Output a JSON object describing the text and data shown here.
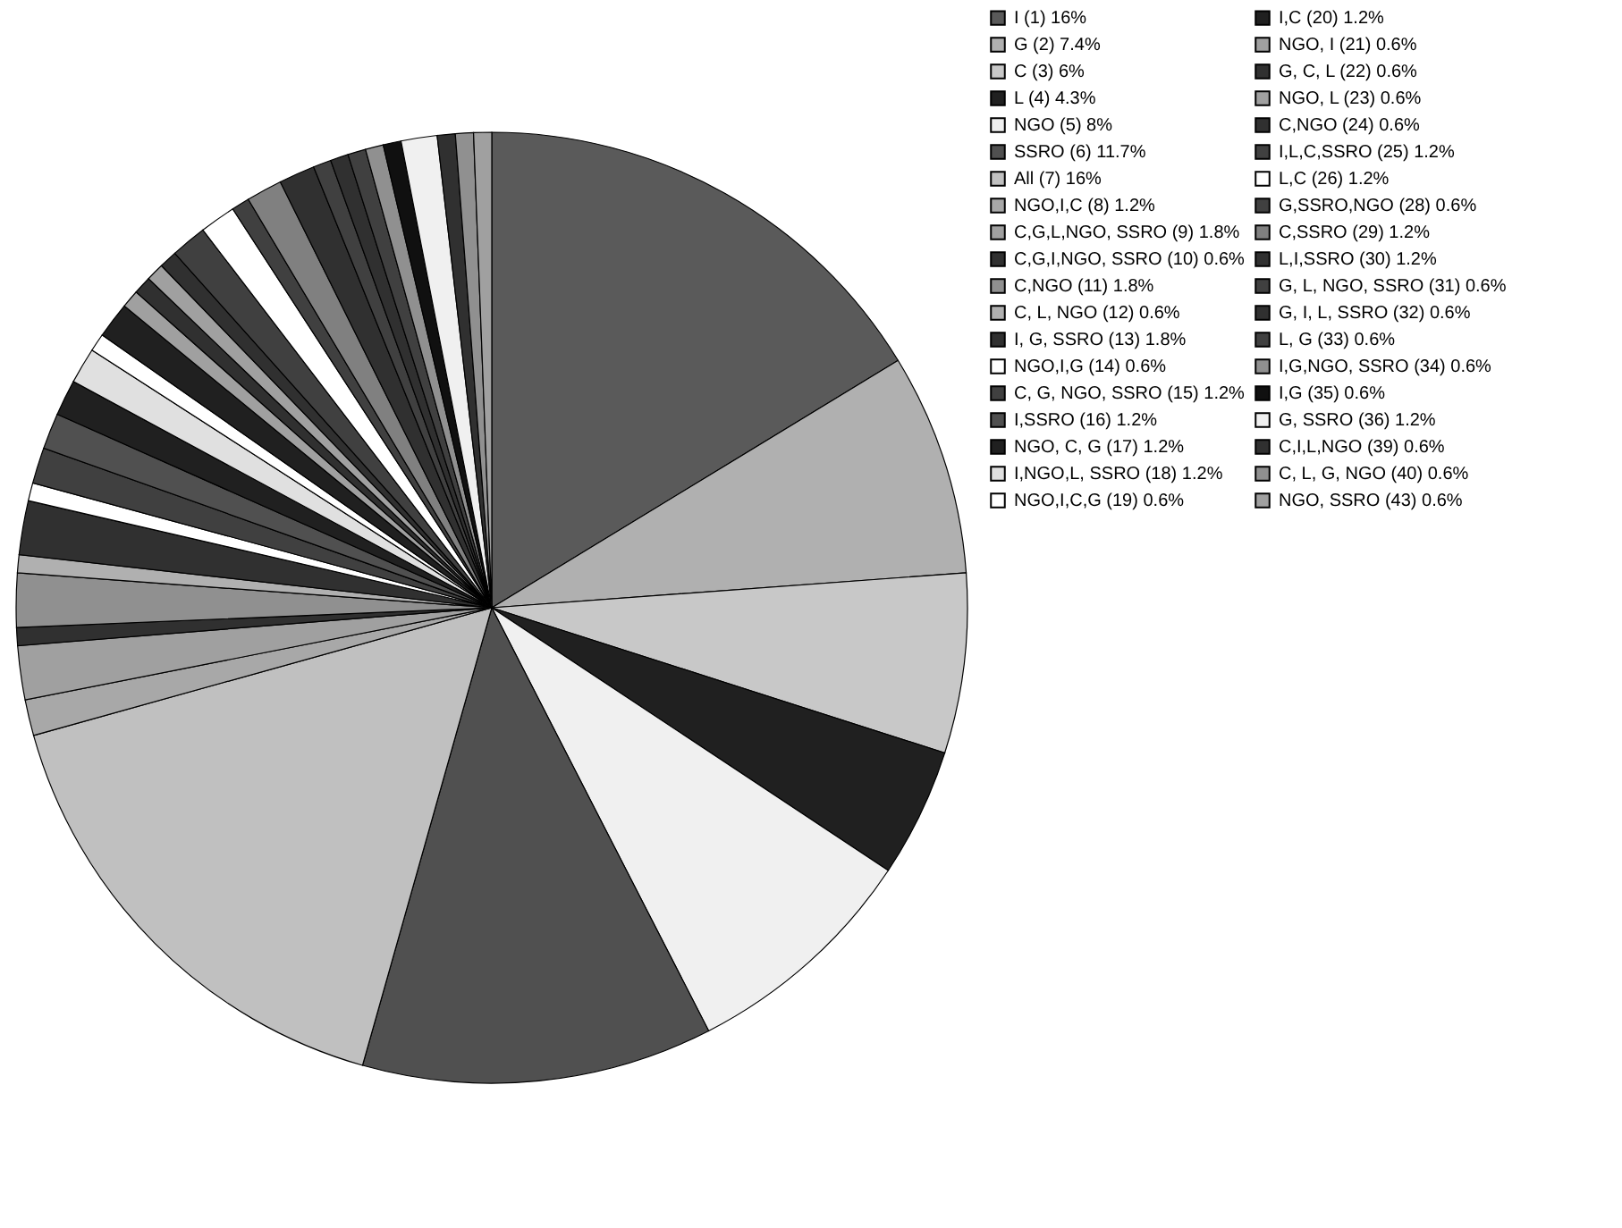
{
  "chart_data": {
    "type": "pie",
    "legend": "right",
    "categories": [
      "I (1) 16%",
      "G (2) 7.4%",
      "C (3) 6%",
      "L (4) 4.3%",
      "NGO (5) 8%",
      "SSRO (6) 11.7%",
      "All (7) 16%",
      "NGO,I,C (8) 1.2%",
      "C,G,L,NGO, SSRO (9) 1.8%",
      "C,G,I,NGO, SSRO (10) 0.6%",
      "C,NGO (11) 1.8%",
      "C, L, NGO (12) 0.6%",
      "I, G, SSRO (13) 1.8%",
      "NGO,I,G (14) 0.6%",
      "C, G, NGO, SSRO (15) 1.2%",
      "I,SSRO (16) 1.2%",
      "NGO, C, G (17) 1.2%",
      "I,NGO,L, SSRO (18) 1.2%",
      "NGO,I,C,G (19) 0.6%",
      "I,C (20) 1.2%",
      "NGO, I (21) 0.6%",
      "G, C, L (22) 0.6%",
      "NGO, L (23) 0.6%",
      "C,NGO (24) 0.6%",
      "I,L,C,SSRO (25) 1.2%",
      "L,C (26) 1.2%",
      "G,SSRO,NGO (28) 0.6%",
      "C,SSRO (29) 1.2%",
      "L,I,SSRO (30) 1.2%",
      "G, L, NGO, SSRO (31) 0.6%",
      "G, I, L, SSRO (32) 0.6%",
      "L, G (33) 0.6%",
      "I,G,NGO, SSRO (34) 0.6%",
      "I,G (35) 0.6%",
      "G, SSRO (36) 1.2%",
      "C,I,L,NGO (39) 0.6%",
      "C, L, G, NGO (40) 0.6%",
      "NGO, SSRO (43) 0.6%"
    ],
    "values": [
      16,
      7.4,
      6,
      4.3,
      8,
      11.7,
      16,
      1.2,
      1.8,
      0.6,
      1.8,
      0.6,
      1.8,
      0.6,
      1.2,
      1.2,
      1.2,
      1.2,
      0.6,
      1.2,
      0.6,
      0.6,
      0.6,
      0.6,
      1.2,
      1.2,
      0.6,
      1.2,
      1.2,
      0.6,
      0.6,
      0.6,
      0.6,
      0.6,
      1.2,
      0.6,
      0.6,
      0.6
    ],
    "colors": [
      "#5a5a5a",
      "#b0b0b0",
      "#c8c8c8",
      "#202020",
      "#f0f0f0",
      "#505050",
      "#c0c0c0",
      "#a8a8a8",
      "#a0a0a0",
      "#303030",
      "#909090",
      "#b0b0b0",
      "#303030",
      "#ffffff",
      "#404040",
      "#505050",
      "#202020",
      "#e0e0e0",
      "#ffffff",
      "#202020",
      "#a0a0a0",
      "#303030",
      "#a0a0a0",
      "#303030",
      "#404040",
      "#ffffff",
      "#404040",
      "#808080",
      "#303030",
      "#404040",
      "#303030",
      "#404040",
      "#909090",
      "#101010",
      "#f0f0f0",
      "#303030",
      "#909090",
      "#a0a0a0"
    ]
  }
}
